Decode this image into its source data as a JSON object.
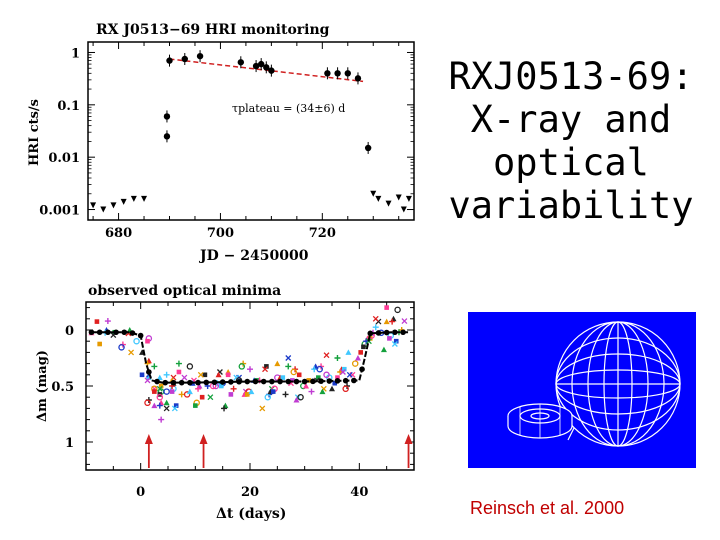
{
  "slide": {
    "title_lines": [
      "RXJ0513-69:",
      "X-ray and",
      "optical",
      "variability"
    ],
    "credit": "Reinsch et al. 2000"
  },
  "colors": {
    "background": "#ffffff",
    "credit": "#c00000",
    "model_bg": "#0000ff",
    "fit_line": "#d02020",
    "arrow": "#d02020"
  },
  "chart_data": [
    {
      "type": "scatter",
      "title": "RX J0513−69 HRI monitoring",
      "xlabel": "JD − 2450000",
      "ylabel": "HRI cts/s",
      "xlim": [
        674,
        738
      ],
      "ylim_log10": [
        -3.2,
        0.2
      ],
      "xticks": [
        680,
        700,
        720
      ],
      "xtick_labels": [
        "680",
        "700",
        "720"
      ],
      "yticks": [
        1,
        0.1,
        0.01,
        0.001
      ],
      "ytick_labels": [
        "1",
        "0.1",
        "0.01",
        "0.001"
      ],
      "annotation": "τplateau = (34±6) d",
      "detections": [
        {
          "x": 689.5,
          "y": 0.06
        },
        {
          "x": 689.5,
          "y": 0.025
        },
        {
          "x": 690,
          "y": 0.7
        },
        {
          "x": 693,
          "y": 0.75
        },
        {
          "x": 696,
          "y": 0.85
        },
        {
          "x": 704,
          "y": 0.65
        },
        {
          "x": 707,
          "y": 0.55
        },
        {
          "x": 708,
          "y": 0.6
        },
        {
          "x": 709,
          "y": 0.52
        },
        {
          "x": 710,
          "y": 0.45
        },
        {
          "x": 721,
          "y": 0.4
        },
        {
          "x": 723,
          "y": 0.4
        },
        {
          "x": 725,
          "y": 0.4
        },
        {
          "x": 727,
          "y": 0.32
        },
        {
          "x": 729,
          "y": 0.015
        }
      ],
      "upper_limits": [
        {
          "x": 675,
          "y": 0.0012
        },
        {
          "x": 677,
          "y": 0.001
        },
        {
          "x": 679,
          "y": 0.0012
        },
        {
          "x": 681,
          "y": 0.0014
        },
        {
          "x": 683,
          "y": 0.0016
        },
        {
          "x": 685,
          "y": 0.0016
        },
        {
          "x": 730,
          "y": 0.002
        },
        {
          "x": 731,
          "y": 0.0016
        },
        {
          "x": 733,
          "y": 0.0013
        },
        {
          "x": 735,
          "y": 0.0017
        },
        {
          "x": 736,
          "y": 0.001
        },
        {
          "x": 737,
          "y": 0.0016
        }
      ],
      "fit": {
        "x": [
          690,
          728
        ],
        "y": [
          0.75,
          0.28
        ],
        "style": "dashed"
      }
    },
    {
      "type": "scatter",
      "title": "observed optical minima",
      "xlabel": "Δt (days)",
      "ylabel": "Δm (mag)",
      "xlim": [
        -10,
        50
      ],
      "ylim": [
        1.25,
        -0.25
      ],
      "xticks": [
        0,
        20,
        40
      ],
      "xtick_labels": [
        "0",
        "20",
        "40"
      ],
      "yticks": [
        0,
        0.5,
        1
      ],
      "ytick_labels": [
        "0",
        "0.5",
        "1"
      ],
      "model_curve": {
        "x": [
          -9,
          -2,
          0,
          1,
          2,
          4,
          10,
          20,
          30,
          40,
          41,
          42,
          46,
          49
        ],
        "y": [
          0.02,
          0.02,
          0.05,
          0.3,
          0.45,
          0.47,
          0.47,
          0.46,
          0.46,
          0.45,
          0.25,
          0.03,
          0.02,
          0.02
        ]
      },
      "arrow_times": [
        1.5,
        11.5,
        49
      ],
      "observed_points": {
        "marker_colors": [
          "#222222",
          "#1a3ac8",
          "#14a03c",
          "#ff3a96",
          "#e69a00",
          "#c03cd2",
          "#e02020",
          "#40c8ff"
        ],
        "x": [
          -9,
          -7,
          -5,
          -3,
          -1,
          0.5,
          1,
          1.5,
          2,
          2.5,
          3,
          3.5,
          4,
          4.5,
          5,
          5.5,
          6,
          7,
          8,
          9,
          10,
          11,
          12,
          13,
          14,
          15,
          16,
          17,
          18,
          19,
          20,
          21,
          22,
          23,
          24,
          25,
          26,
          27,
          28,
          29,
          30,
          31,
          32,
          33,
          34,
          35,
          36,
          37,
          38,
          39,
          40,
          41,
          42,
          43,
          44,
          45,
          46,
          47,
          48
        ],
        "y": [
          0.0,
          0.05,
          0.02,
          0.08,
          0.1,
          0.15,
          0.3,
          0.4,
          0.55,
          0.5,
          0.6,
          0.65,
          0.45,
          0.7,
          0.5,
          0.55,
          0.45,
          0.6,
          0.4,
          0.5,
          0.65,
          0.45,
          0.5,
          0.55,
          0.4,
          0.45,
          0.6,
          0.5,
          0.35,
          0.55,
          0.5,
          0.45,
          0.4,
          0.6,
          0.5,
          0.45,
          0.4,
          0.5,
          0.35,
          0.55,
          0.5,
          0.4,
          0.45,
          0.3,
          0.45,
          0.5,
          0.4,
          0.35,
          0.45,
          0.3,
          0.2,
          0.1,
          0.05,
          -0.05,
          0.0,
          0.1,
          -0.1,
          0.05,
          -0.08
        ]
      }
    }
  ]
}
